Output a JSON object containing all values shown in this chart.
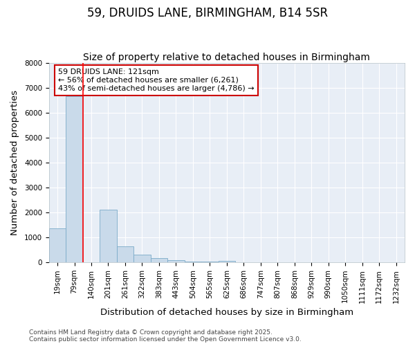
{
  "title": "59, DRUIDS LANE, BIRMINGHAM, B14 5SR",
  "subtitle": "Size of property relative to detached houses in Birmingham",
  "xlabel": "Distribution of detached houses by size in Birmingham",
  "ylabel": "Number of detached properties",
  "categories": [
    "19sqm",
    "79sqm",
    "140sqm",
    "201sqm",
    "261sqm",
    "322sqm",
    "383sqm",
    "443sqm",
    "504sqm",
    "565sqm",
    "625sqm",
    "686sqm",
    "747sqm",
    "807sqm",
    "868sqm",
    "929sqm",
    "990sqm",
    "1050sqm",
    "1111sqm",
    "1172sqm",
    "1232sqm"
  ],
  "values": [
    1350,
    6650,
    0,
    2100,
    650,
    310,
    155,
    80,
    35,
    20,
    70,
    5,
    2,
    1,
    1,
    0,
    0,
    0,
    0,
    0,
    0
  ],
  "bar_color": "#c9daea",
  "bar_edge_color": "#7aaac8",
  "red_line_x": 1.5,
  "annotation_text": "59 DRUIDS LANE: 121sqm\n← 56% of detached houses are smaller (6,261)\n43% of semi-detached houses are larger (4,786) →",
  "annotation_box_facecolor": "#ffffff",
  "annotation_box_edgecolor": "#cc0000",
  "ylim": [
    0,
    8000
  ],
  "yticks": [
    0,
    1000,
    2000,
    3000,
    4000,
    5000,
    6000,
    7000,
    8000
  ],
  "figure_bg": "#ffffff",
  "plot_bg": "#e8eef6",
  "grid_color": "#ffffff",
  "title_fontsize": 12,
  "subtitle_fontsize": 10,
  "axis_label_fontsize": 9.5,
  "tick_fontsize": 7.5,
  "annotation_fontsize": 8,
  "footer_fontsize": 6.5,
  "footer_line1": "Contains HM Land Registry data © Crown copyright and database right 2025.",
  "footer_line2": "Contains public sector information licensed under the Open Government Licence v3.0."
}
